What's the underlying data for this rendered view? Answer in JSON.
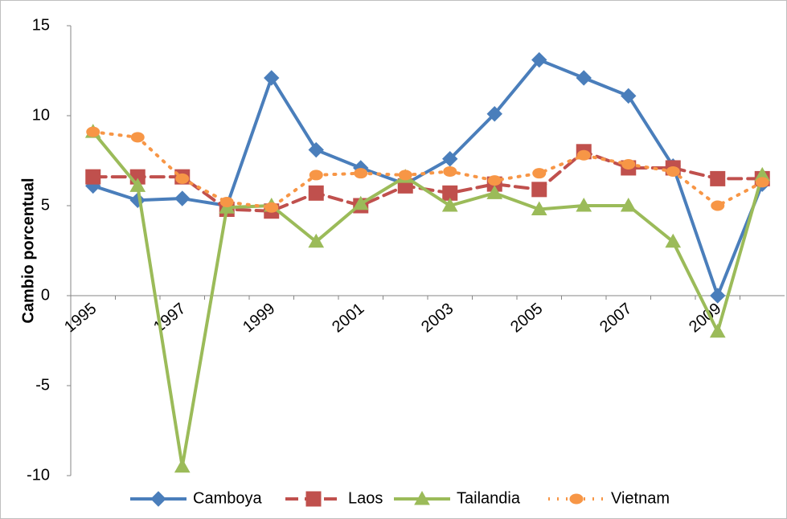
{
  "chart_data": {
    "type": "line",
    "y_label": "Cambio porcentual",
    "categories": [
      "1995",
      null,
      "1997",
      null,
      "1999",
      null,
      "2001",
      null,
      "2003",
      null,
      "2005",
      null,
      "2007",
      null,
      "2009",
      null
    ],
    "series": [
      {
        "name": "Camboya",
        "color": "#4a7ebb",
        "marker": "diamond",
        "dash": "solid",
        "values": [
          6.1,
          5.3,
          5.4,
          5.0,
          12.1,
          8.1,
          7.1,
          6.2,
          7.6,
          10.1,
          13.1,
          12.1,
          11.1,
          7.2,
          0.0,
          6.2
        ]
      },
      {
        "name": "Laos",
        "color": "#c0504d",
        "marker": "square",
        "dash": "dashed",
        "values": [
          6.6,
          6.6,
          6.6,
          4.8,
          4.7,
          5.7,
          5.0,
          6.1,
          5.7,
          6.2,
          5.9,
          8.0,
          7.1,
          7.1,
          6.5,
          6.5
        ]
      },
      {
        "name": "Tailandia",
        "color": "#9bbb59",
        "marker": "triangle",
        "dash": "solid",
        "values": [
          9.1,
          6.1,
          -9.5,
          4.9,
          5.0,
          3.0,
          5.1,
          6.6,
          5.0,
          5.7,
          4.8,
          5.0,
          5.0,
          3.0,
          -2.0,
          6.7
        ]
      },
      {
        "name": "Vietnam",
        "color": "#f79646",
        "marker": "circle",
        "dash": "dotted",
        "values": [
          9.1,
          8.8,
          6.5,
          5.2,
          4.9,
          6.7,
          6.8,
          6.7,
          6.9,
          6.4,
          6.8,
          7.8,
          7.3,
          6.9,
          5.0,
          6.3
        ]
      }
    ],
    "ylim": [
      -10,
      15
    ],
    "yticks": [
      -10,
      -5,
      0,
      5,
      10,
      15
    ],
    "grid": false,
    "legend": "bottom"
  }
}
